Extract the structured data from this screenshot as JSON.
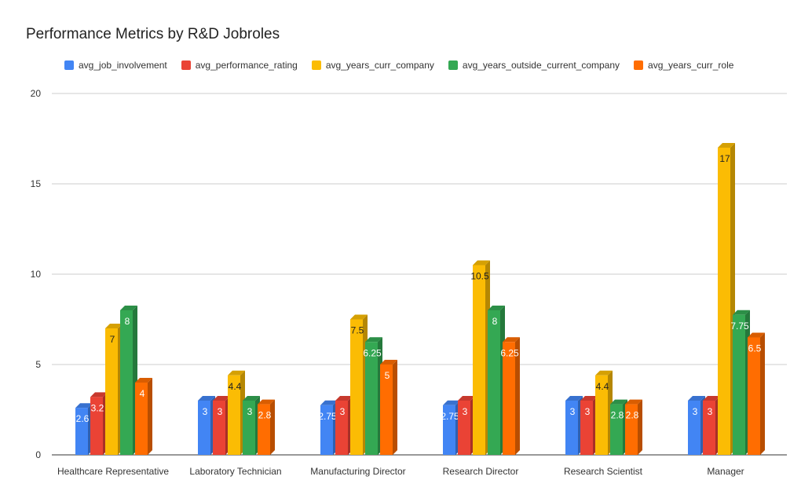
{
  "title": "Performance Metrics by R&D Jobroles",
  "colors": {
    "grid": "#cccccc",
    "axis": "#333333",
    "text": "#333333"
  },
  "chart_data": {
    "type": "bar",
    "title": "Performance Metrics by R&D Jobroles",
    "xlabel": "",
    "ylabel": "",
    "ylim": [
      0,
      20
    ],
    "yticks": [
      "0",
      "5",
      "10",
      "15",
      "20"
    ],
    "grid": true,
    "legend_position": "top",
    "categories": [
      "Healthcare Representative",
      "Laboratory Technician",
      "Manufacturing Director",
      "Research Director",
      "Research Scientist",
      "Manager"
    ],
    "series": [
      {
        "name": "avg_job_involvement",
        "color": "#4285F4",
        "values": [
          2.6,
          3,
          2.75,
          2.75,
          3,
          3
        ],
        "labels": [
          "2.6",
          "3",
          "2.75",
          "2.75",
          "3",
          "3"
        ]
      },
      {
        "name": "avg_performance_rating",
        "color": "#EA4335",
        "values": [
          3.2,
          3,
          3,
          3,
          3,
          3
        ],
        "labels": [
          "3.2",
          "3",
          "3",
          "3",
          "3",
          "3"
        ]
      },
      {
        "name": "avg_years_curr_company",
        "color": "#FBBC04",
        "values": [
          7,
          4.4,
          7.5,
          10.5,
          4.4,
          17
        ],
        "labels": [
          "7",
          "4.4",
          "7.5",
          "10.5",
          "4.4",
          "17"
        ]
      },
      {
        "name": "avg_years_outside_current_company",
        "color": "#34A853",
        "values": [
          8,
          3,
          6.25,
          8,
          2.8,
          7.75
        ],
        "labels": [
          "8",
          "3",
          "6.25",
          "8",
          "2.8",
          "7.75"
        ]
      },
      {
        "name": "avg_years_curr_role",
        "color": "#FF6D01",
        "values": [
          4,
          2.8,
          5,
          6.25,
          2.8,
          6.5
        ],
        "labels": [
          "4",
          "2.8",
          "5",
          "6.25",
          "2.8",
          "6.5"
        ]
      }
    ]
  }
}
